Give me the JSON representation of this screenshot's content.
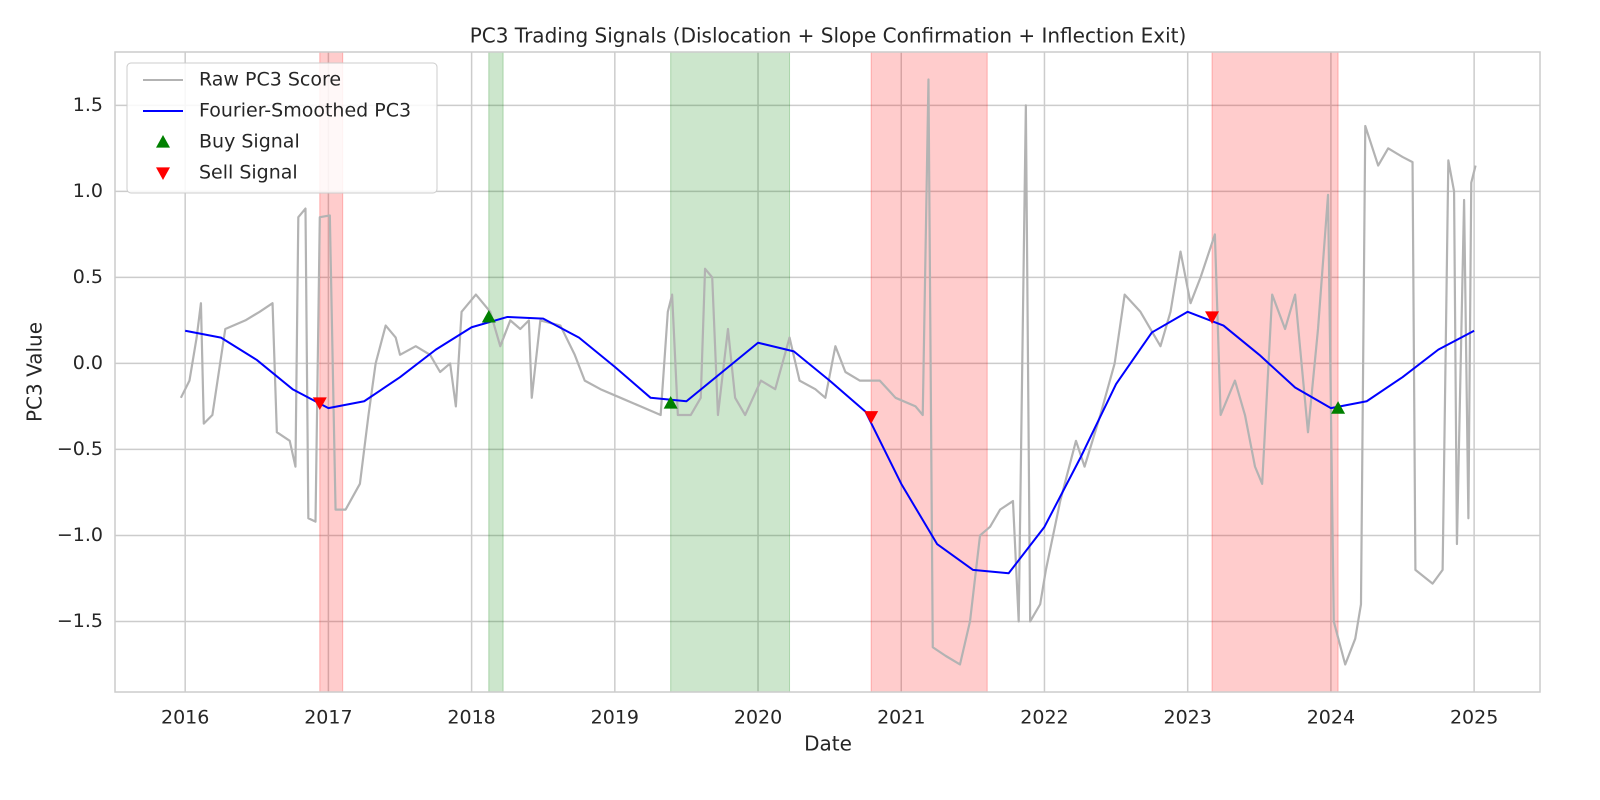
{
  "chart_data": {
    "type": "line",
    "title": "PC3 Trading Signals (Dislocation + Slope Confirmation + Inflection Exit)",
    "x_label": "Date",
    "y_label": "PC3 Value",
    "xlim": [
      2015.51,
      2025.46
    ],
    "ylim": [
      -1.91,
      1.81
    ],
    "xticks": [
      2016,
      2017,
      2018,
      2019,
      2020,
      2021,
      2022,
      2023,
      2024,
      2025
    ],
    "yticks": [
      {
        "value": -1.5,
        "label": "−1.5"
      },
      {
        "value": -1.0,
        "label": "−1.0"
      },
      {
        "value": -0.5,
        "label": "−0.5"
      },
      {
        "value": 0,
        "label": "0.0"
      },
      0.5,
      {
        "value": 1.0,
        "label": "1.0"
      },
      1.5
    ],
    "grid": true,
    "legend": "upper-left",
    "spans": [
      {
        "start": 2016.94,
        "end": 2017.1,
        "color": "#ff0000"
      },
      {
        "start": 2018.12,
        "end": 2018.22,
        "color": "#008000"
      },
      {
        "start": 2019.39,
        "end": 2020.22,
        "color": "#008000"
      },
      {
        "start": 2020.79,
        "end": 2021.6,
        "color": "#ff0000"
      },
      {
        "start": 2023.17,
        "end": 2024.05,
        "color": "#ff0000"
      }
    ],
    "series": [
      {
        "name": "Raw PC3 Score",
        "color": "#b3b3b3",
        "marker": "line",
        "x": [
          2015.97,
          2016.03,
          2016.08,
          2016.11,
          2016.13,
          2016.19,
          2016.28,
          2016.42,
          2016.52,
          2016.61,
          2016.64,
          2016.73,
          2016.77,
          2016.79,
          2016.84,
          2016.86,
          2016.91,
          2016.94,
          2017.01,
          2017.05,
          2017.12,
          2017.22,
          2017.28,
          2017.33,
          2017.4,
          2017.47,
          2017.5,
          2017.61,
          2017.71,
          2017.78,
          2017.85,
          2017.89,
          2017.93,
          2018.03,
          2018.13,
          2018.2,
          2018.27,
          2018.34,
          2018.4,
          2018.42,
          2018.48,
          2018.62,
          2018.72,
          2018.79,
          2018.9,
          2019.04,
          2019.18,
          2019.32,
          2019.37,
          2019.4,
          2019.44,
          2019.53,
          2019.6,
          2019.63,
          2019.68,
          2019.72,
          2019.79,
          2019.84,
          2019.91,
          2020.02,
          2020.12,
          2020.22,
          2020.29,
          2020.4,
          2020.47,
          2020.54,
          2020.61,
          2020.71,
          2020.85,
          2020.96,
          2021.1,
          2021.15,
          2021.19,
          2021.22,
          2021.31,
          2021.41,
          2021.48,
          2021.55,
          2021.62,
          2021.69,
          2021.78,
          2021.82,
          2021.87,
          2021.9,
          2021.97,
          2022.01,
          2022.11,
          2022.22,
          2022.28,
          2022.39,
          2022.49,
          2022.56,
          2022.67,
          2022.81,
          2022.88,
          2022.95,
          2023.02,
          2023.09,
          2023.19,
          2023.23,
          2023.33,
          2023.4,
          2023.47,
          2023.52,
          2023.59,
          2023.68,
          2023.75,
          2023.84,
          2023.91,
          2023.98,
          2024.02,
          2024.1,
          2024.17,
          2024.21,
          2024.24,
          2024.33,
          2024.4,
          2024.5,
          2024.57,
          2024.59,
          2024.71,
          2024.78,
          2024.82,
          2024.86,
          2024.88,
          2024.93,
          2024.96,
          2024.98,
          2025.01
        ],
        "values": [
          -0.2,
          -0.1,
          0.15,
          0.35,
          -0.35,
          -0.3,
          0.2,
          0.25,
          0.3,
          0.35,
          -0.4,
          -0.45,
          -0.6,
          0.85,
          0.9,
          -0.9,
          -0.92,
          0.85,
          0.86,
          -0.85,
          -0.85,
          -0.7,
          -0.3,
          0.0,
          0.22,
          0.15,
          0.05,
          0.1,
          0.05,
          -0.05,
          0.0,
          -0.25,
          0.3,
          0.4,
          0.3,
          0.1,
          0.25,
          0.2,
          0.25,
          -0.2,
          0.25,
          0.22,
          0.05,
          -0.1,
          -0.15,
          -0.2,
          -0.25,
          -0.3,
          0.3,
          0.4,
          -0.3,
          -0.3,
          -0.2,
          0.55,
          0.5,
          -0.3,
          0.2,
          -0.2,
          -0.3,
          -0.1,
          -0.15,
          0.15,
          -0.1,
          -0.15,
          -0.2,
          0.1,
          -0.05,
          -0.1,
          -0.1,
          -0.2,
          -0.25,
          -0.3,
          1.65,
          -1.65,
          -1.7,
          -1.75,
          -1.5,
          -1.0,
          -0.95,
          -0.85,
          -0.8,
          -1.5,
          1.5,
          -1.5,
          -1.4,
          -1.2,
          -0.8,
          -0.45,
          -0.6,
          -0.3,
          0.0,
          0.4,
          0.3,
          0.1,
          0.3,
          0.65,
          0.35,
          0.5,
          0.75,
          -0.3,
          -0.1,
          -0.3,
          -0.6,
          -0.7,
          0.4,
          0.2,
          0.4,
          -0.4,
          0.2,
          0.98,
          -1.5,
          -1.75,
          -1.6,
          -1.4,
          1.38,
          1.15,
          1.25,
          1.2,
          1.17,
          -1.2,
          -1.28,
          -1.2,
          1.18,
          1.0,
          -1.05,
          0.95,
          -0.9,
          1.05,
          1.15
        ]
      },
      {
        "name": "Fourier-Smoothed PC3",
        "color": "#0000ff",
        "marker": "line",
        "x": [
          2016,
          2016.25,
          2016.5,
          2016.75,
          2017,
          2017.25,
          2017.5,
          2017.75,
          2018,
          2018.25,
          2018.5,
          2018.75,
          2019,
          2019.25,
          2019.5,
          2019.75,
          2020,
          2020.25,
          2020.5,
          2020.75,
          2021,
          2021.25,
          2021.5,
          2021.75,
          2022,
          2022.25,
          2022.5,
          2022.75,
          2023,
          2023.25,
          2023.5,
          2023.75,
          2024,
          2024.25,
          2024.5,
          2024.75,
          2025
        ],
        "values": [
          0.19,
          0.15,
          0.02,
          -0.15,
          -0.26,
          -0.22,
          -0.08,
          0.08,
          0.21,
          0.27,
          0.26,
          0.15,
          -0.02,
          -0.2,
          -0.22,
          -0.05,
          0.12,
          0.07,
          -0.1,
          -0.28,
          -0.7,
          -1.05,
          -1.2,
          -1.22,
          -0.95,
          -0.55,
          -0.12,
          0.18,
          0.3,
          0.22,
          0.05,
          -0.14,
          -0.26,
          -0.22,
          -0.08,
          0.08,
          0.19
        ]
      },
      {
        "name": "Buy Signal",
        "color": "#008000",
        "marker": "triangle-up",
        "x": [
          2018.12,
          2019.39,
          2024.05
        ],
        "values": [
          0.27,
          -0.23,
          -0.26
        ]
      },
      {
        "name": "Sell Signal",
        "color": "#ff0000",
        "marker": "triangle-down",
        "x": [
          2016.94,
          2020.79,
          2023.17
        ],
        "values": [
          -0.23,
          -0.31,
          0.27
        ]
      }
    ]
  }
}
